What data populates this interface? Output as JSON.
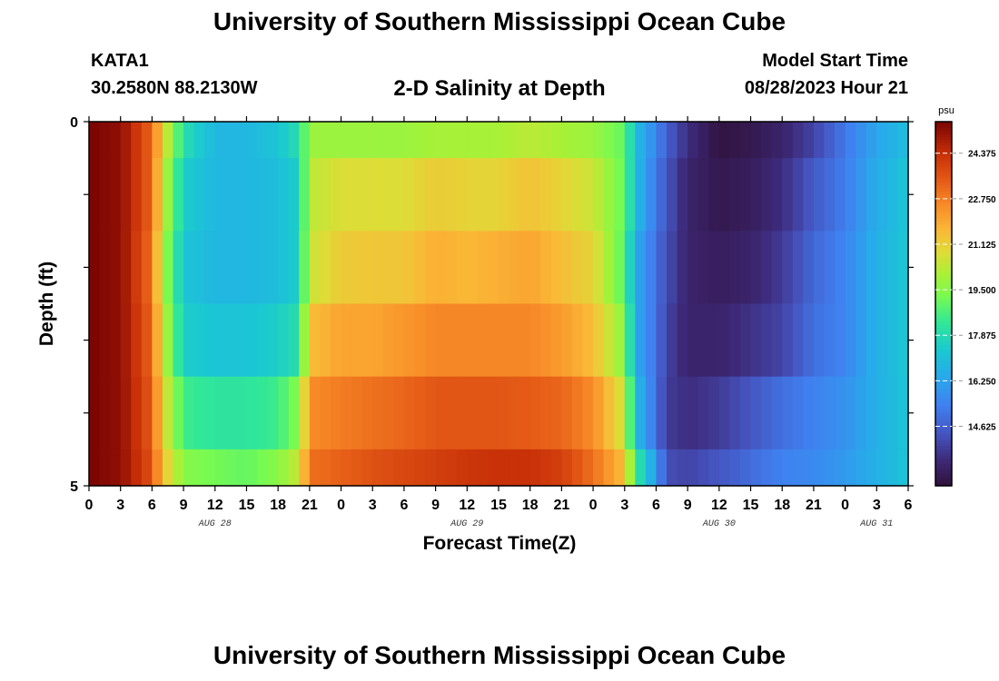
{
  "page": {
    "title": "University of Southern Mississippi Ocean Cube",
    "title_repeat": "University of Southern Mississippi Ocean Cube",
    "station": "KATA1",
    "coordinates": "30.2580N  88.2130W",
    "model_start_label": "Model Start Time",
    "model_start_value": "08/28/2023 Hour 21"
  },
  "chart_data": {
    "type": "heatmap",
    "title": "2-D Salinity at Depth",
    "xlabel": "Forecast Time(Z)",
    "ylabel": "Depth (ft)",
    "units": "psu",
    "x_tick_labels": [
      "0",
      "3",
      "6",
      "9",
      "12",
      "15",
      "18",
      "21",
      "0",
      "3",
      "6",
      "9",
      "12",
      "15",
      "18",
      "21",
      "0",
      "3",
      "6",
      "9",
      "12",
      "15",
      "18",
      "21",
      "0",
      "3",
      "6"
    ],
    "date_labels": [
      {
        "label": "AUG 28",
        "hour": 12
      },
      {
        "label": "AUG 29",
        "hour": 36
      },
      {
        "label": "AUG 30",
        "hour": 60
      },
      {
        "label": "AUG 31",
        "hour": 75
      }
    ],
    "xlim": [
      0,
      78
    ],
    "y_tick_labels": [
      "0",
      "5"
    ],
    "ylim": [
      0,
      5
    ],
    "colorbar": {
      "range": [
        12.5,
        25.5
      ],
      "tick_labels": [
        "24.375",
        "22.750",
        "21.125",
        "19.500",
        "17.875",
        "16.250",
        "14.625"
      ],
      "tick_values": [
        24.375,
        22.75,
        21.125,
        19.5,
        17.875,
        16.25,
        14.625
      ]
    },
    "depth_rows": [
      0.25,
      1.0,
      2.0,
      3.0,
      4.0,
      4.75
    ],
    "hours": [
      0,
      3,
      6,
      7,
      9,
      12,
      15,
      18,
      20,
      21,
      24,
      27,
      30,
      33,
      36,
      39,
      42,
      45,
      48,
      51,
      52,
      54,
      55,
      57,
      60,
      63,
      66,
      69,
      72,
      75,
      78
    ],
    "salinity": [
      [
        25.5,
        25.2,
        23.2,
        21.0,
        18.0,
        16.8,
        16.8,
        17.2,
        18.0,
        19.8,
        19.8,
        19.8,
        19.8,
        20.0,
        20.0,
        20.0,
        20.3,
        20.0,
        19.8,
        19.0,
        17.0,
        15.5,
        14.6,
        13.5,
        12.6,
        12.8,
        13.2,
        14.0,
        15.2,
        16.3,
        17.0
      ],
      [
        25.5,
        25.2,
        23.2,
        20.5,
        17.5,
        16.8,
        16.8,
        17.0,
        17.5,
        20.3,
        20.8,
        20.8,
        20.8,
        21.2,
        21.0,
        21.0,
        21.4,
        21.0,
        20.5,
        19.0,
        17.0,
        15.2,
        14.4,
        13.2,
        12.8,
        13.0,
        13.5,
        14.5,
        15.3,
        16.5,
        17.2
      ],
      [
        25.5,
        25.2,
        23.0,
        20.0,
        17.2,
        16.8,
        16.8,
        17.0,
        17.5,
        20.5,
        21.2,
        21.3,
        21.3,
        21.8,
        21.6,
        21.8,
        22.0,
        21.5,
        21.0,
        18.8,
        16.5,
        15.0,
        14.2,
        13.2,
        13.0,
        13.2,
        13.8,
        14.8,
        15.5,
        16.6,
        17.3
      ],
      [
        25.5,
        25.2,
        23.2,
        20.5,
        17.5,
        17.2,
        17.2,
        17.5,
        18.0,
        21.5,
        22.0,
        22.0,
        22.3,
        22.6,
        22.6,
        22.6,
        22.6,
        22.2,
        21.5,
        19.5,
        16.5,
        15.0,
        14.0,
        13.2,
        13.2,
        13.6,
        14.0,
        15.0,
        15.5,
        16.6,
        17.3
      ],
      [
        25.5,
        25.2,
        23.4,
        21.0,
        18.5,
        18.2,
        18.2,
        18.5,
        19.5,
        22.5,
        22.8,
        23.0,
        23.2,
        23.5,
        23.5,
        23.5,
        23.4,
        23.2,
        22.5,
        20.5,
        17.0,
        15.0,
        13.8,
        13.5,
        13.8,
        14.4,
        15.0,
        15.4,
        15.8,
        16.6,
        17.2
      ],
      [
        25.5,
        25.2,
        23.6,
        21.5,
        19.5,
        19.2,
        19.0,
        19.5,
        20.5,
        23.0,
        23.3,
        23.6,
        23.8,
        24.0,
        24.2,
        24.3,
        24.3,
        24.0,
        23.0,
        21.5,
        18.5,
        16.0,
        14.2,
        14.0,
        14.4,
        14.9,
        15.4,
        15.6,
        16.0,
        16.6,
        17.2
      ]
    ]
  }
}
